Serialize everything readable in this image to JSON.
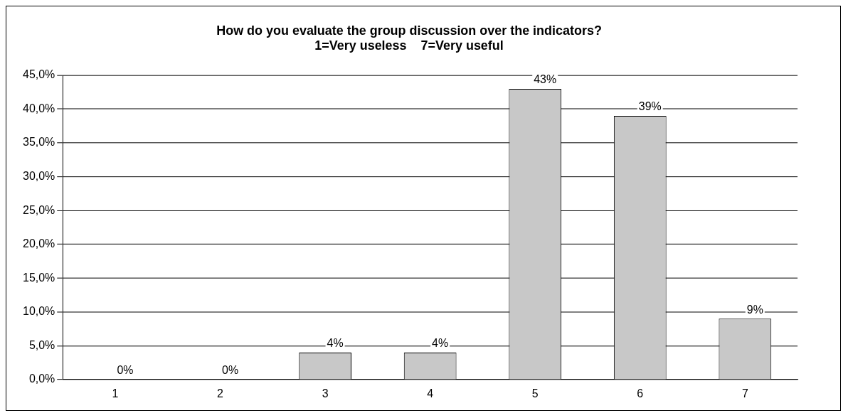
{
  "chart_data": {
    "type": "bar",
    "title": "How do you evaluate the group discussion over the indicators?\n1=Very useless    7=Very useful",
    "categories": [
      "1",
      "2",
      "3",
      "4",
      "5",
      "6",
      "7"
    ],
    "values": [
      0,
      0,
      4,
      4,
      43,
      39,
      9
    ],
    "value_labels": [
      "0%",
      "0%",
      "4%",
      "4%",
      "43%",
      "39%",
      "9%"
    ],
    "color": "#c8c8c8",
    "ylim": [
      0,
      45
    ],
    "yticks": [
      {
        "value": 0,
        "label": "0,0%"
      },
      {
        "value": 5,
        "label": "5,0%"
      },
      {
        "value": 10,
        "label": "10,0%"
      },
      {
        "value": 15,
        "label": "15,0%"
      },
      {
        "value": 20,
        "label": "20,0%"
      },
      {
        "value": 25,
        "label": "25,0%"
      },
      {
        "value": 30,
        "label": "30,0%"
      },
      {
        "value": 35,
        "label": "35,0%"
      },
      {
        "value": 40,
        "label": "40,0%"
      },
      {
        "value": 45,
        "label": "45,0%"
      }
    ],
    "grid": "y",
    "legend": false
  }
}
